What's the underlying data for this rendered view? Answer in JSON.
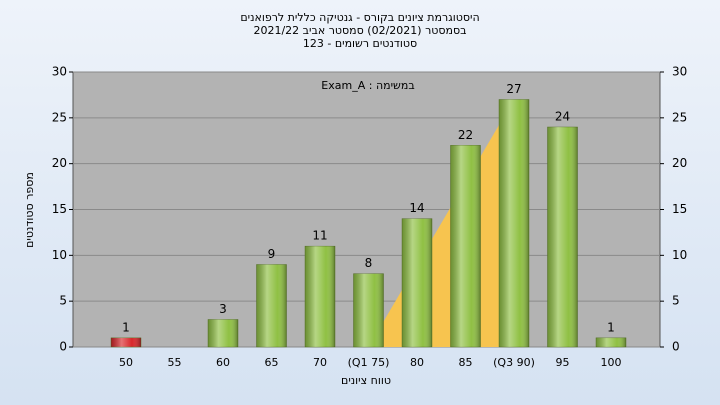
{
  "chart_data": {
    "type": "bar",
    "title": "היסטוגרמת ציונים בקורס - גנטיקה כללית לרפואנים",
    "subtitle": "בסמסטר  (02/2021)  סמסטר אביב 2021/22",
    "subtitle2": "סטודנטים רשומים - 123",
    "annotation": "Exam_A : במשימה",
    "xlabel": "טווח ציונים",
    "ylabel": "מספר סטודנטים",
    "categories": [
      "50",
      "55",
      "60",
      "65",
      "70",
      "(Q1 75)",
      "80",
      "85",
      "(Q3 90)",
      "95",
      "100"
    ],
    "values": [
      1,
      null,
      3,
      9,
      11,
      8,
      14,
      22,
      27,
      24,
      1
    ],
    "colors": [
      "#d8262a",
      null,
      "#8fc043",
      "#8fc043",
      "#8fc043",
      "#8fc043",
      "#8fc043",
      "#8fc043",
      "#8fc043",
      "#8fc043",
      "#8fc043"
    ],
    "ylim": [
      0,
      30
    ],
    "yticks": [
      0,
      5,
      10,
      15,
      20,
      25,
      30
    ],
    "y2lim": [
      0,
      30
    ],
    "y2ticks": [
      0,
      5,
      10,
      15,
      20,
      25,
      30
    ],
    "grid": true
  }
}
